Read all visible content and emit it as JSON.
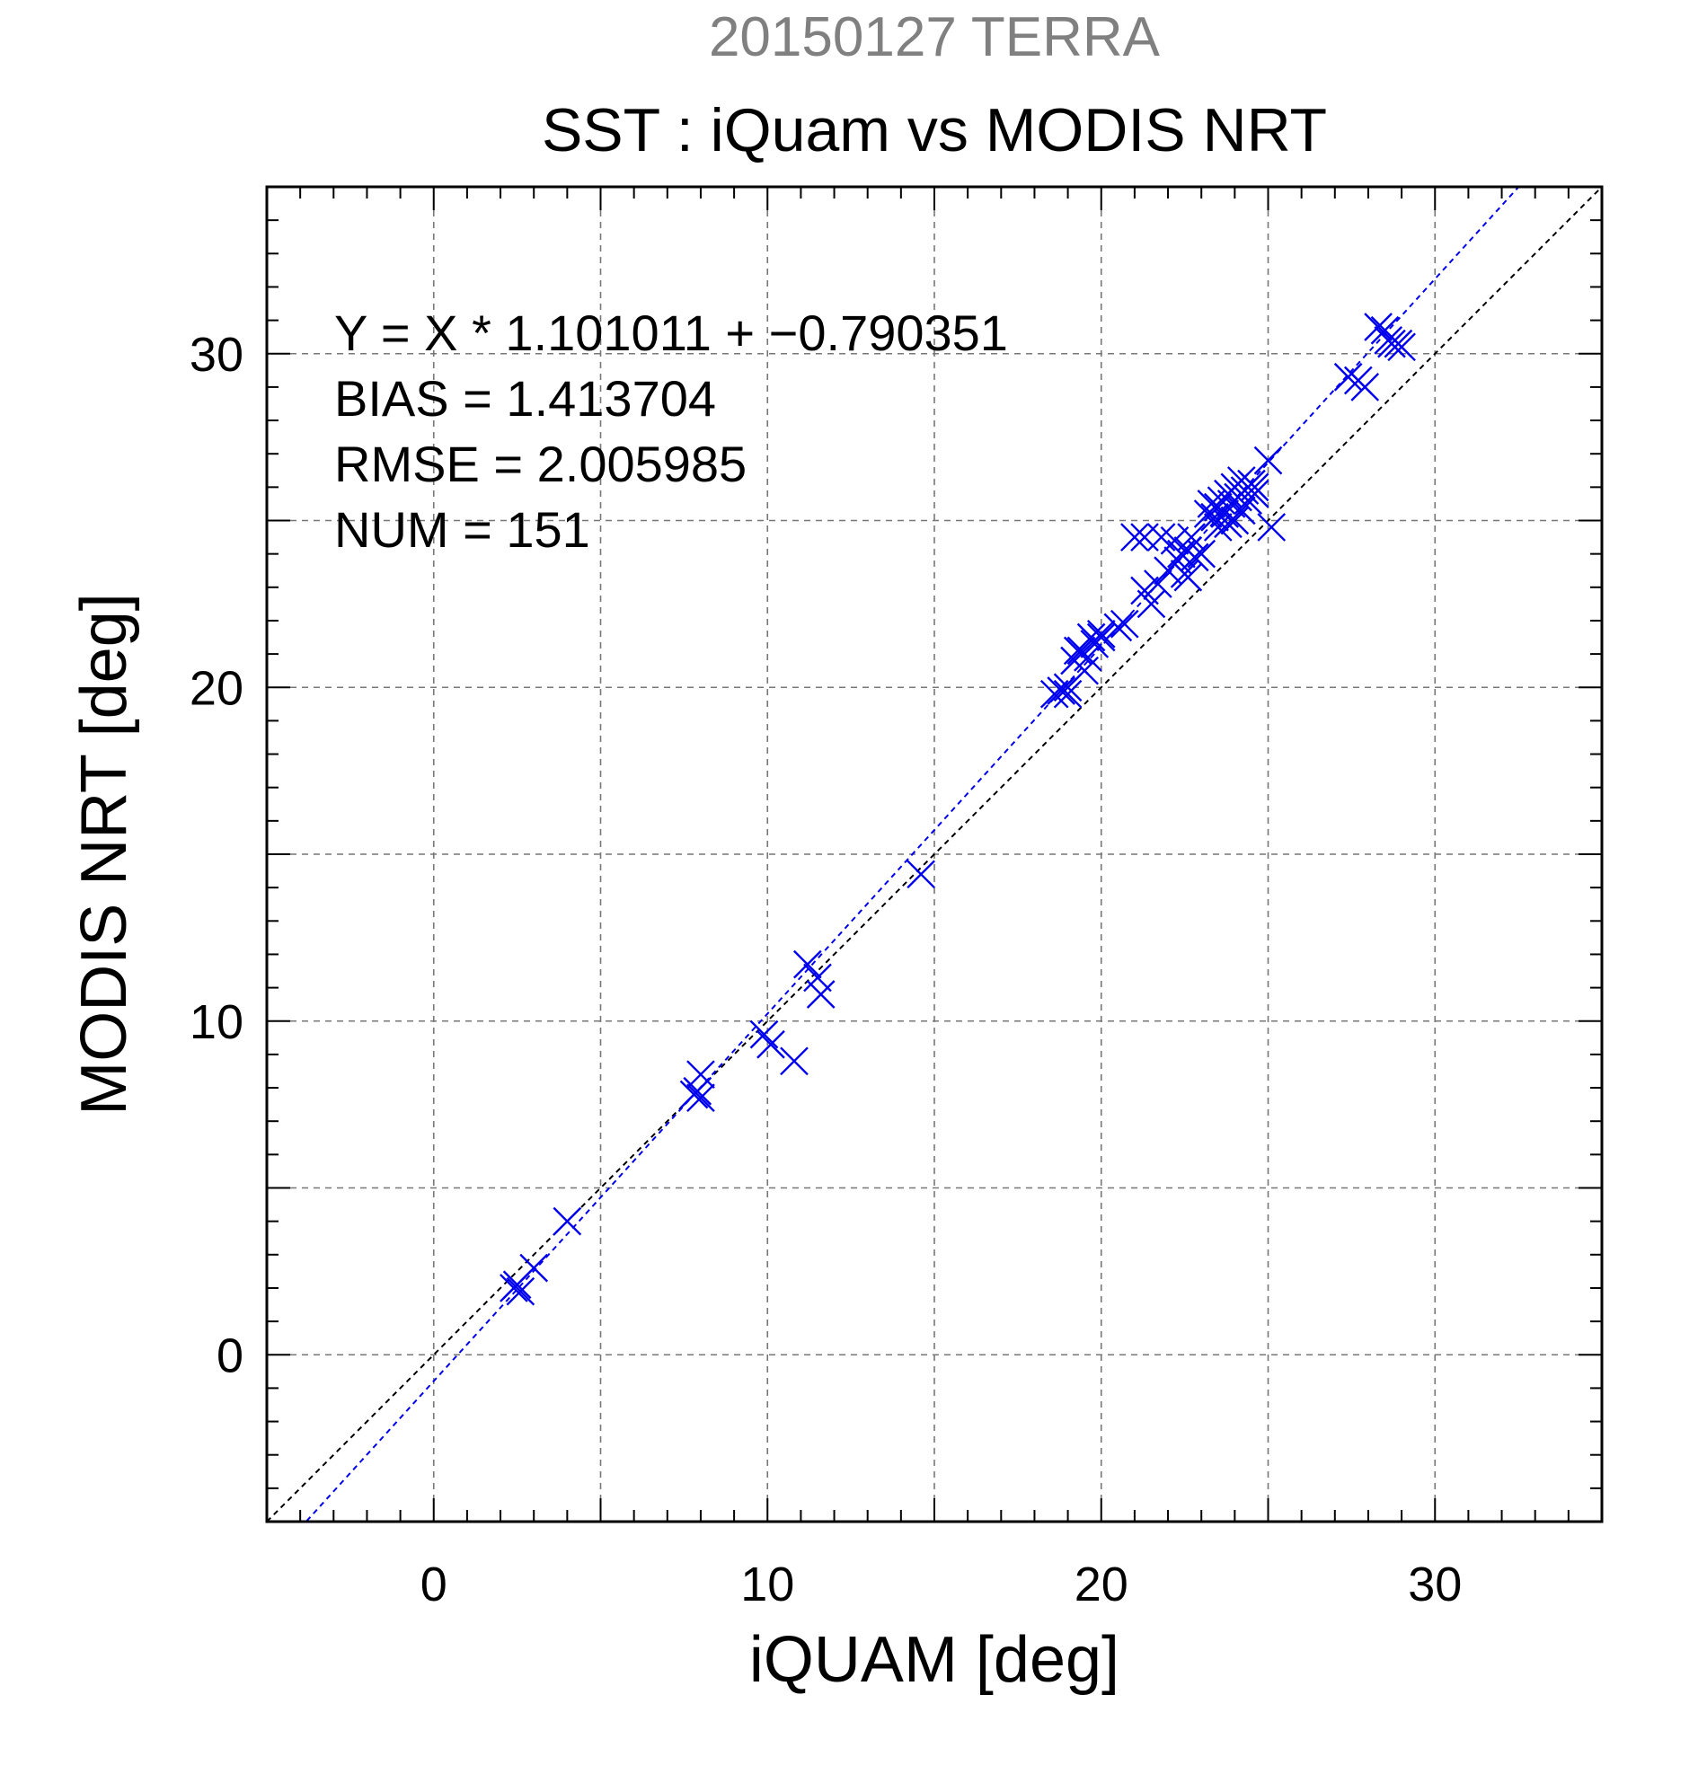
{
  "chart_data": {
    "type": "scatter",
    "supertitle": "20150127 TERRA",
    "title": "SST : iQuam vs MODIS NRT",
    "xlabel": "iQUAM [deg]",
    "ylabel": "MODIS NRT [deg]",
    "xlim": [
      -5,
      35
    ],
    "ylim": [
      -5,
      35
    ],
    "xticks": [
      0,
      10,
      20,
      30
    ],
    "yticks": [
      0,
      10,
      20,
      30
    ],
    "grid": true,
    "annotations": [
      "Y = X * 1.101011 + −0.790351",
      "BIAS = 1.413704",
      "RMSE = 2.005985",
      "NUM = 151"
    ],
    "regression": {
      "slope": 1.101011,
      "intercept": -0.790351
    },
    "colors": {
      "points": "#0000ee",
      "fit_line": "#0000ee",
      "identity_line": "#000000",
      "supertitle": "#808080",
      "grid": "#777777"
    },
    "series": [
      {
        "marker": "x",
        "points": [
          [
            2.4,
            2.0
          ],
          [
            2.5,
            2.1
          ],
          [
            2.6,
            1.9
          ],
          [
            3.0,
            2.6
          ],
          [
            4.0,
            4.0
          ],
          [
            7.8,
            7.8
          ],
          [
            7.9,
            7.9
          ],
          [
            8.0,
            7.7
          ],
          [
            8.0,
            8.4
          ],
          [
            9.9,
            9.6
          ],
          [
            10.1,
            9.3
          ],
          [
            10.8,
            8.8
          ],
          [
            11.2,
            11.7
          ],
          [
            11.5,
            11.3
          ],
          [
            11.6,
            10.8
          ],
          [
            14.6,
            14.4
          ],
          [
            18.6,
            19.8
          ],
          [
            18.8,
            19.9
          ],
          [
            19.0,
            19.8
          ],
          [
            19.0,
            20.0
          ],
          [
            19.2,
            20.8
          ],
          [
            19.3,
            21.1
          ],
          [
            19.4,
            21.1
          ],
          [
            19.5,
            20.5
          ],
          [
            19.6,
            20.9
          ],
          [
            19.7,
            21.5
          ],
          [
            19.8,
            21.3
          ],
          [
            20.0,
            21.6
          ],
          [
            20.0,
            21.5
          ],
          [
            20.5,
            21.8
          ],
          [
            20.7,
            21.9
          ],
          [
            21.0,
            24.5
          ],
          [
            21.3,
            24.5
          ],
          [
            21.3,
            22.9
          ],
          [
            21.5,
            22.5
          ],
          [
            21.7,
            23.1
          ],
          [
            21.8,
            24.5
          ],
          [
            22.0,
            23.5
          ],
          [
            22.2,
            24.4
          ],
          [
            22.3,
            23.8
          ],
          [
            22.4,
            24.0
          ],
          [
            22.5,
            23.4
          ],
          [
            22.6,
            24.1
          ],
          [
            22.6,
            23.3
          ],
          [
            22.7,
            24.5
          ],
          [
            22.8,
            23.9
          ],
          [
            23.0,
            24.0
          ],
          [
            23.2,
            25.2
          ],
          [
            23.3,
            25.5
          ],
          [
            23.4,
            25.1
          ],
          [
            23.5,
            25.4
          ],
          [
            23.5,
            24.8
          ],
          [
            23.6,
            25.6
          ],
          [
            23.7,
            25.2
          ],
          [
            23.8,
            25.8
          ],
          [
            23.8,
            24.9
          ],
          [
            23.9,
            25.5
          ],
          [
            24.0,
            26.0
          ],
          [
            24.0,
            25.0
          ],
          [
            24.1,
            25.7
          ],
          [
            24.2,
            26.2
          ],
          [
            24.2,
            25.3
          ],
          [
            24.3,
            25.9
          ],
          [
            24.4,
            25.6
          ],
          [
            24.5,
            26.1
          ],
          [
            24.6,
            25.8
          ],
          [
            24.6,
            26.0
          ],
          [
            25.0,
            26.8
          ],
          [
            25.1,
            24.8
          ],
          [
            27.4,
            29.3
          ],
          [
            27.7,
            29.2
          ],
          [
            27.9,
            29.0
          ],
          [
            28.3,
            30.8
          ],
          [
            28.5,
            30.7
          ],
          [
            28.6,
            30.4
          ],
          [
            28.7,
            30.3
          ],
          [
            28.9,
            30.3
          ],
          [
            29.0,
            30.2
          ]
        ]
      }
    ]
  }
}
